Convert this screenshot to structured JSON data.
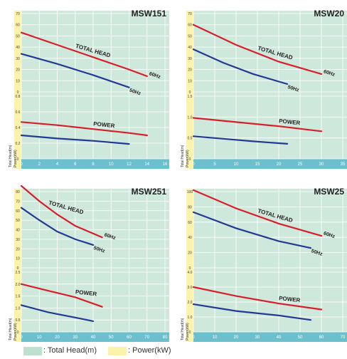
{
  "legend": {
    "total_head_label": ": Total Head(m)",
    "power_label": ": Power(kW)",
    "head_bg_color": "#bfe0cf",
    "power_bg_color": "#fbf2ab"
  },
  "colors": {
    "head_panel": "#cfe8dc",
    "power_panel": "#fbf2ab",
    "grid": "#ffffff",
    "axis_band": "#6cbfcc",
    "curve_60hz": "#d61f2a",
    "curve_50hz": "#223a92"
  },
  "chart_data": [
    {
      "type": "line",
      "title": "MSW151",
      "xlabel": "Capacity ( ℓ / min)",
      "ylabel_head": "Total Head(m)",
      "ylabel_power": "Power(kW)",
      "x_ticks": [
        "0",
        "2",
        "4",
        "6",
        "8",
        "10",
        "12",
        "14",
        "16"
      ],
      "xlim": [
        0,
        16
      ],
      "head_ticks": [
        "0",
        "10",
        "20",
        "30",
        "40",
        "50",
        "60",
        "70"
      ],
      "head_ylim": [
        0,
        70
      ],
      "power_ticks": [
        "0",
        "0.2",
        "0.4",
        "0.6",
        "0.8"
      ],
      "power_ylim": [
        0,
        0.8
      ],
      "head_label": "TOTAL HEAD",
      "power_label": "POWER",
      "head_series": [
        {
          "name": "60Hz",
          "x": [
            0,
            4,
            8,
            12,
            14
          ],
          "y": [
            53,
            42,
            31,
            20,
            14
          ]
        },
        {
          "name": "50Hz",
          "x": [
            0,
            4,
            8,
            12
          ],
          "y": [
            34,
            25,
            15,
            4
          ]
        }
      ],
      "power_series": [
        {
          "x": [
            0,
            4,
            8,
            12,
            14
          ],
          "y": [
            0.47,
            0.43,
            0.38,
            0.33,
            0.3
          ]
        },
        {
          "x": [
            0,
            4,
            8,
            12
          ],
          "y": [
            0.3,
            0.26,
            0.23,
            0.19
          ]
        }
      ]
    },
    {
      "type": "line",
      "title": "MSW20",
      "xlabel": "Capacity ( ℓ / min)",
      "ylabel_head": "Total Head(m)",
      "ylabel_power": "Power(kW)",
      "x_ticks": [
        "0",
        "5",
        "10",
        "15",
        "20",
        "25",
        "30",
        "35"
      ],
      "xlim": [
        0,
        35
      ],
      "head_ticks": [
        "0",
        "10",
        "20",
        "30",
        "40",
        "50",
        "60",
        "70"
      ],
      "head_ylim": [
        0,
        70
      ],
      "power_ticks": [
        "0",
        "0.5",
        "1.0",
        "1.5"
      ],
      "power_ylim": [
        0,
        1.5
      ],
      "head_label": "TOTAL HEAD",
      "power_label": "POWER",
      "head_series": [
        {
          "name": "60Hz",
          "x": [
            0,
            10,
            20,
            30
          ],
          "y": [
            60,
            42,
            27,
            16
          ]
        },
        {
          "name": "50Hz",
          "x": [
            0,
            7,
            14,
            22
          ],
          "y": [
            38,
            26,
            16,
            7
          ]
        }
      ],
      "power_series": [
        {
          "x": [
            0,
            10,
            20,
            30
          ],
          "y": [
            0.98,
            0.88,
            0.78,
            0.66
          ]
        },
        {
          "x": [
            0,
            7,
            14,
            22
          ],
          "y": [
            0.54,
            0.48,
            0.42,
            0.36
          ]
        }
      ]
    },
    {
      "type": "line",
      "title": "MSW251",
      "xlabel": "Capacity ( ℓ / min)",
      "ylabel_head": "Total Head(m)",
      "ylabel_power": "Power(kW)",
      "x_ticks": [
        "0",
        "10",
        "20",
        "30",
        "40",
        "50",
        "60",
        "70",
        "80"
      ],
      "xlim": [
        0,
        80
      ],
      "head_ticks": [
        "0",
        "10",
        "20",
        "30",
        "40",
        "50",
        "60",
        "70",
        "80"
      ],
      "head_ylim": [
        0,
        80
      ],
      "power_ticks": [
        "0",
        "0.5",
        "1.0",
        "1.5",
        "2.0",
        "2.5"
      ],
      "power_ylim": [
        0,
        2.5
      ],
      "head_label": "TOTAL HEAD",
      "power_label": "POWER",
      "head_series": [
        {
          "name": "60Hz",
          "x": [
            0,
            10,
            20,
            30,
            45
          ],
          "y": [
            86,
            70,
            56,
            44,
            32
          ]
        },
        {
          "name": "50Hz",
          "x": [
            0,
            10,
            20,
            30,
            40
          ],
          "y": [
            63,
            50,
            38,
            30,
            24
          ]
        }
      ],
      "power_series": [
        {
          "x": [
            0,
            15,
            30,
            45
          ],
          "y": [
            2.0,
            1.72,
            1.45,
            1.05
          ]
        },
        {
          "x": [
            0,
            15,
            30,
            40
          ],
          "y": [
            1.12,
            0.82,
            0.6,
            0.45
          ]
        }
      ]
    },
    {
      "type": "line",
      "title": "MSW25",
      "xlabel": "Capacity ( ℓ / min)",
      "ylabel_head": "Total Head(m)",
      "ylabel_power": "Power(kW)",
      "x_ticks": [
        "0",
        "10",
        "20",
        "30",
        "40",
        "50",
        "60",
        "70"
      ],
      "xlim": [
        0,
        70
      ],
      "head_ticks": [
        "0",
        "20",
        "40",
        "60",
        "80",
        "100"
      ],
      "head_ylim": [
        0,
        100
      ],
      "power_ticks": [
        "0",
        "1.0",
        "2.0",
        "3.0",
        "4.0"
      ],
      "power_ylim": [
        0,
        4.0
      ],
      "head_label": "TOTAL HEAD",
      "power_label": "POWER",
      "head_series": [
        {
          "name": "60Hz",
          "x": [
            0,
            20,
            40,
            60
          ],
          "y": [
            102,
            78,
            58,
            42
          ]
        },
        {
          "name": "50Hz",
          "x": [
            0,
            20,
            40,
            55
          ],
          "y": [
            73,
            52,
            35,
            26
          ]
        }
      ],
      "power_series": [
        {
          "x": [
            0,
            20,
            40,
            60
          ],
          "y": [
            3.0,
            2.4,
            1.9,
            1.5
          ]
        },
        {
          "x": [
            0,
            20,
            40,
            55
          ],
          "y": [
            1.85,
            1.4,
            1.1,
            0.8
          ]
        }
      ]
    }
  ]
}
